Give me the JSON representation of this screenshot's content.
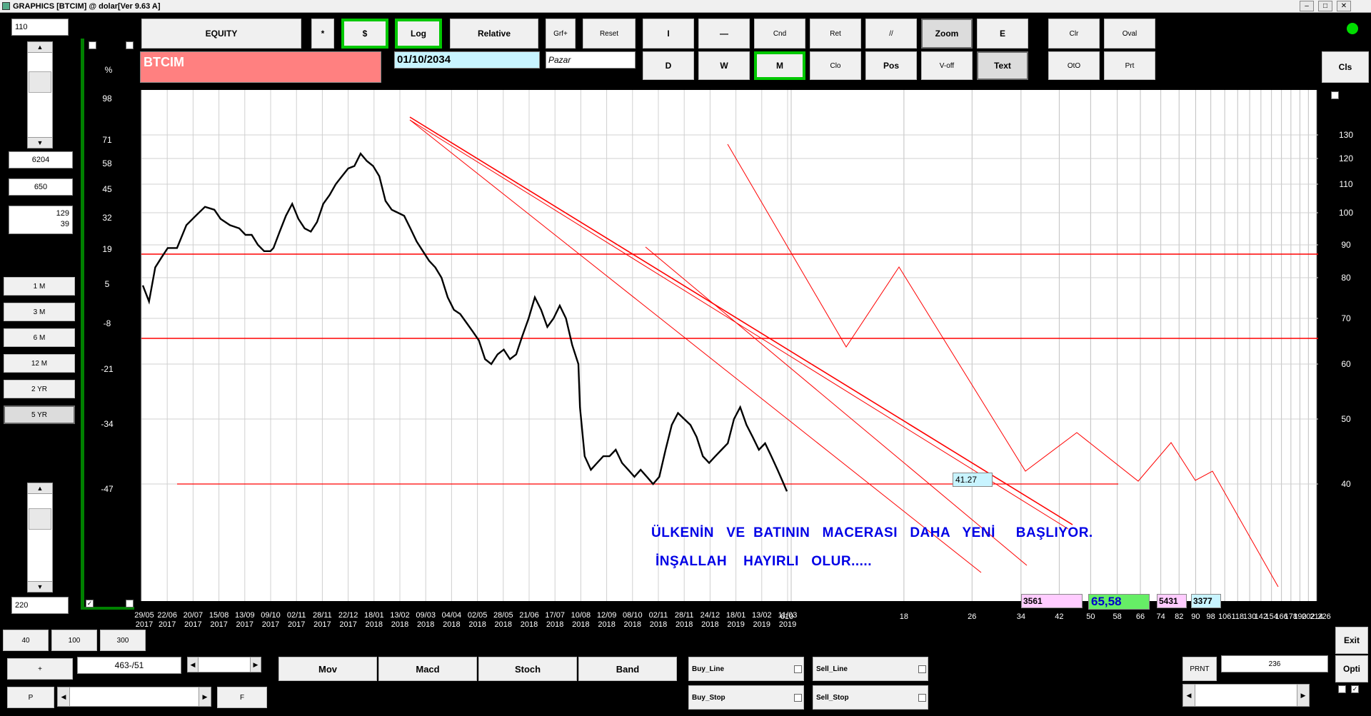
{
  "window": {
    "title": "GRAPHICS  [BTCIM] @ dolar[Ver 9.63 A]"
  },
  "left_panel": {
    "top_value": "110",
    "value_a": "6204",
    "value_b": "650",
    "value_c1": "129",
    "value_c2": "39",
    "period_buttons": [
      "1 M",
      "3 M",
      "6 M",
      "12 M",
      "2 YR",
      "5 YR"
    ],
    "bottom_value": "220"
  },
  "toolbar": {
    "equity": "EQUITY",
    "star": "*",
    "dollar": "$",
    "log": "Log",
    "relative": "Relative",
    "grf": "Grf+",
    "reset": "Reset",
    "row1": [
      "I",
      "—",
      "Cnd",
      "Ret",
      "//",
      "Zoom",
      "E",
      "Clr",
      "Oval"
    ],
    "row2": [
      "D",
      "W",
      "M",
      "Clo",
      "Pos",
      "V-off",
      "Text",
      "OtO",
      "Prt"
    ],
    "cls": "Cls"
  },
  "symbol": {
    "name": "BTCIM",
    "date": "01/10/2034",
    "day": "Pazar"
  },
  "left_axis": {
    "unit": "%",
    "ticks": [
      "98",
      "71",
      "58",
      "45",
      "32",
      "19",
      "5",
      "-8",
      "-21",
      "-34",
      "-47"
    ]
  },
  "chart_data": {
    "type": "line",
    "series": [
      {
        "values": [
          [
            0,
            78
          ],
          [
            4,
            74
          ],
          [
            8,
            83
          ],
          [
            12,
            86
          ],
          [
            16,
            89
          ],
          [
            22,
            89
          ],
          [
            28,
            96
          ],
          [
            34,
            99
          ],
          [
            40,
            102
          ],
          [
            46,
            101
          ],
          [
            50,
            98
          ],
          [
            56,
            96
          ],
          [
            62,
            95
          ],
          [
            66,
            93
          ],
          [
            70,
            93
          ],
          [
            74,
            90
          ],
          [
            78,
            88
          ],
          [
            82,
            88
          ],
          [
            84,
            89
          ],
          [
            88,
            94
          ],
          [
            92,
            99
          ],
          [
            96,
            103
          ],
          [
            100,
            98
          ],
          [
            104,
            95
          ],
          [
            108,
            94
          ],
          [
            112,
            97
          ],
          [
            116,
            103
          ],
          [
            120,
            106
          ],
          [
            124,
            110
          ],
          [
            128,
            113
          ],
          [
            132,
            116
          ],
          [
            136,
            117
          ],
          [
            140,
            122
          ],
          [
            144,
            119
          ],
          [
            148,
            117
          ],
          [
            152,
            113
          ],
          [
            156,
            104
          ],
          [
            160,
            101
          ],
          [
            164,
            100
          ],
          [
            168,
            99
          ],
          [
            172,
            95
          ],
          [
            176,
            91
          ],
          [
            180,
            88
          ],
          [
            184,
            85
          ],
          [
            188,
            83
          ],
          [
            192,
            80
          ],
          [
            196,
            75
          ],
          [
            200,
            72
          ],
          [
            204,
            71
          ],
          [
            208,
            69
          ],
          [
            212,
            67
          ],
          [
            216,
            65
          ],
          [
            220,
            61
          ],
          [
            224,
            60
          ],
          [
            228,
            62
          ],
          [
            232,
            63
          ],
          [
            236,
            61
          ],
          [
            240,
            62
          ],
          [
            244,
            66
          ],
          [
            248,
            70
          ],
          [
            252,
            75
          ],
          [
            256,
            72
          ],
          [
            260,
            68
          ],
          [
            264,
            70
          ],
          [
            268,
            73
          ],
          [
            272,
            70
          ],
          [
            276,
            64
          ],
          [
            280,
            60
          ],
          [
            281,
            52
          ],
          [
            284,
            44
          ],
          [
            288,
            42
          ],
          [
            292,
            43
          ],
          [
            296,
            44
          ],
          [
            300,
            44
          ],
          [
            304,
            45
          ],
          [
            308,
            43
          ],
          [
            312,
            42
          ],
          [
            316,
            41
          ],
          [
            320,
            42
          ],
          [
            324,
            41
          ],
          [
            328,
            40
          ],
          [
            332,
            41
          ],
          [
            336,
            45
          ],
          [
            340,
            49
          ],
          [
            344,
            51
          ],
          [
            348,
            50
          ],
          [
            352,
            49
          ],
          [
            356,
            47
          ],
          [
            360,
            44
          ],
          [
            364,
            43
          ],
          [
            368,
            44
          ],
          [
            372,
            45
          ],
          [
            376,
            46
          ],
          [
            380,
            50
          ],
          [
            384,
            52
          ],
          [
            388,
            49
          ],
          [
            392,
            47
          ],
          [
            396,
            45
          ],
          [
            400,
            46
          ],
          [
            404,
            44
          ],
          [
            408,
            42
          ],
          [
            412,
            40
          ],
          [
            414,
            39
          ]
        ]
      }
    ],
    "overlay_price": "41.27",
    "annotations": [
      "ÜLKENİN   VE  BATININ   MACERASI   DAHA   YENİ     BAŞLIYOR.",
      "İNŞALLAH    HAYIRLI   OLUR....."
    ],
    "ylim": [
      34,
      135
    ],
    "y_scale": "log"
  },
  "right_axis": {
    "ticks": [
      "130",
      "120",
      "110",
      "100",
      "90",
      "80",
      "70",
      "60",
      "50",
      "40"
    ]
  },
  "x_axis": {
    "date_labels": [
      [
        "29/05",
        "2017"
      ],
      [
        "22/06",
        "2017"
      ],
      [
        "20/07",
        "2017"
      ],
      [
        "15/08",
        "2017"
      ],
      [
        "13/09",
        "2017"
      ],
      [
        "09/10",
        "2017"
      ],
      [
        "02/11",
        "2017"
      ],
      [
        "28/11",
        "2017"
      ],
      [
        "22/12",
        "2017"
      ],
      [
        "18/01",
        "2018"
      ],
      [
        "13/02",
        "2018"
      ],
      [
        "09/03",
        "2018"
      ],
      [
        "04/04",
        "2018"
      ],
      [
        "02/05",
        "2018"
      ],
      [
        "28/05",
        "2018"
      ],
      [
        "21/06",
        "2018"
      ],
      [
        "17/07",
        "2018"
      ],
      [
        "10/08",
        "2018"
      ],
      [
        "12/09",
        "2018"
      ],
      [
        "08/10",
        "2018"
      ],
      [
        "02/11",
        "2018"
      ],
      [
        "28/11",
        "2018"
      ],
      [
        "24/12",
        "2018"
      ],
      [
        "18/01",
        "2019"
      ],
      [
        "13/02",
        "2019"
      ],
      [
        "11/03",
        "2019"
      ]
    ],
    "index_labels": [
      "610",
      "18",
      "26",
      "34",
      "42",
      "50",
      "58",
      "66",
      "74",
      "82",
      "90",
      "98",
      "106",
      "118",
      "130",
      "142",
      "154",
      "166",
      "178",
      "190",
      "202",
      "214",
      "226"
    ]
  },
  "info_boxes": {
    "pink": "3561",
    "green": "65,58",
    "pink2": "5431",
    "cyan": "3377"
  },
  "bottom": {
    "b40": "40",
    "b100": "100",
    "b300": "300",
    "plus": "+",
    "position": "463-/51",
    "p": "P",
    "f": "F",
    "mov": "Mov",
    "macd": "Macd",
    "stoch": "Stoch",
    "band": "Band",
    "buy_line": "Buy_Line",
    "sell_line": "Sell_Line",
    "buy_stop": "Buy_Stop",
    "sell_stop": "Sell_Stop",
    "prnt": "PRNT",
    "prnt_value": "236",
    "exit": "Exit",
    "opti": "Opti"
  },
  "colors": {
    "price_line": "#000000",
    "trend_lines": "#ff0000",
    "annotation": "#0000e6",
    "status_dot": "#00dd00"
  }
}
